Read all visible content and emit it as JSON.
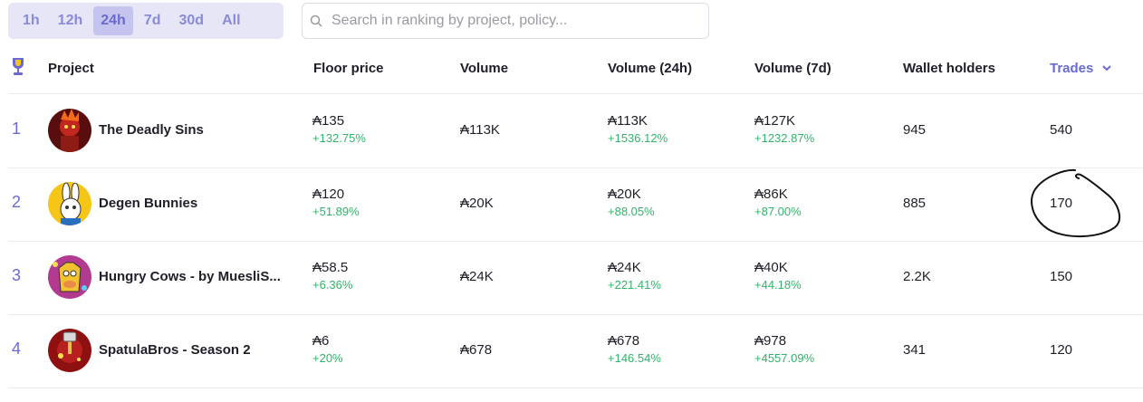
{
  "timeframes": {
    "options": [
      "1h",
      "12h",
      "24h",
      "7d",
      "30d",
      "All"
    ],
    "selected": "24h"
  },
  "search": {
    "placeholder": "Search in ranking by project, policy..."
  },
  "columns": {
    "project": "Project",
    "floor": "Floor price",
    "volume": "Volume",
    "volume24": "Volume (24h)",
    "volume7": "Volume (7d)",
    "holders": "Wallet holders",
    "trades": "Trades"
  },
  "icons": {
    "trophy": "trophy-icon",
    "sort": "chevron-down-icon",
    "search": "search-icon"
  },
  "colors": {
    "accent": "#6a6ad0",
    "positive": "#33b36b"
  },
  "rows": [
    {
      "rank": "1",
      "project": "The Deadly Sins",
      "floor": "₳135",
      "floor_change": "+132.75%",
      "volume": "₳113K",
      "volume24": "₳113K",
      "volume24_change": "+1536.12%",
      "volume7": "₳127K",
      "volume7_change": "+1232.87%",
      "holders": "945",
      "trades": "540"
    },
    {
      "rank": "2",
      "project": "Degen Bunnies",
      "floor": "₳120",
      "floor_change": "+51.89%",
      "volume": "₳20K",
      "volume24": "₳20K",
      "volume24_change": "+88.05%",
      "volume7": "₳86K",
      "volume7_change": "+87.00%",
      "holders": "885",
      "trades": "170"
    },
    {
      "rank": "3",
      "project": "Hungry Cows - by MuesliS...",
      "floor": "₳58.5",
      "floor_change": "+6.36%",
      "volume": "₳24K",
      "volume24": "₳24K",
      "volume24_change": "+221.41%",
      "volume7": "₳40K",
      "volume7_change": "+44.18%",
      "holders": "2.2K",
      "trades": "150"
    },
    {
      "rank": "4",
      "project": "SpatulaBros - Season 2",
      "floor": "₳6",
      "floor_change": "+20%",
      "volume": "₳678",
      "volume24": "₳678",
      "volume24_change": "+146.54%",
      "volume7": "₳978",
      "volume7_change": "+4557.09%",
      "holders": "341",
      "trades": "120"
    }
  ]
}
